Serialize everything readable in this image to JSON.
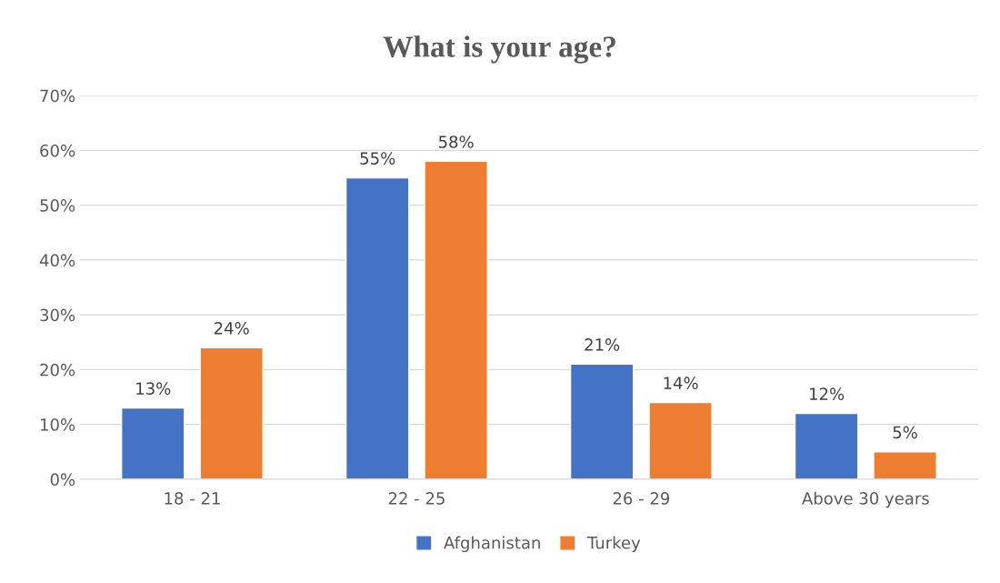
{
  "chart_data": {
    "type": "bar",
    "title": "What is your age?",
    "categories": [
      "18 - 21",
      "22 - 25",
      "26 - 29",
      "Above 30 years"
    ],
    "series": [
      {
        "name": "Afghanistan",
        "color": "#4472c4",
        "values": [
          13,
          55,
          21,
          12
        ],
        "value_labels": [
          "13%",
          "55%",
          "21%",
          "12%"
        ]
      },
      {
        "name": "Turkey",
        "color": "#ed7d31",
        "values": [
          24,
          58,
          14,
          5
        ],
        "value_labels": [
          "24%",
          "58%",
          "14%",
          "5%"
        ]
      }
    ],
    "ylim": [
      0,
      70
    ],
    "yticks": [
      {
        "value": 0,
        "label": "0%"
      },
      {
        "value": 10,
        "label": "10%"
      },
      {
        "value": 20,
        "label": "20%"
      },
      {
        "value": 30,
        "label": "30%"
      },
      {
        "value": 40,
        "label": "40%"
      },
      {
        "value": 50,
        "label": "50%"
      },
      {
        "value": 60,
        "label": "60%"
      },
      {
        "value": 70,
        "label": "70%"
      }
    ],
    "grid": "y",
    "legend": "bottom"
  }
}
